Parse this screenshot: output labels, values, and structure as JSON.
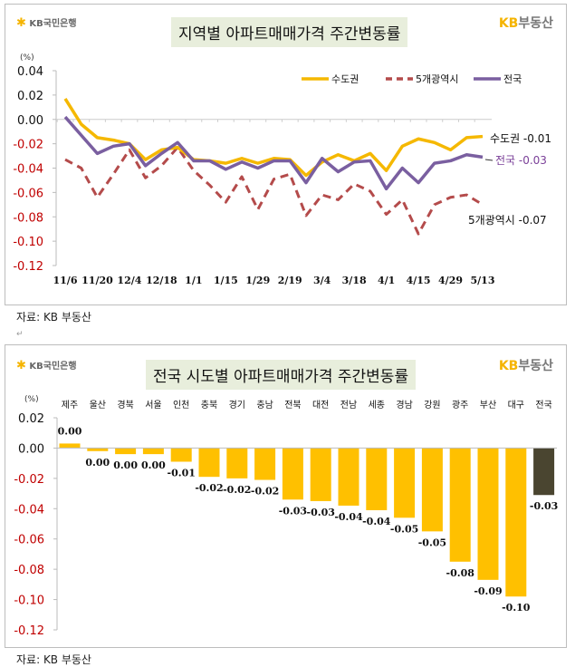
{
  "chart_data": [
    {
      "type": "line",
      "title": "지역별 아파트매매가격 주간변동률",
      "unit": "(%)",
      "ylim": [
        -0.12,
        0.04
      ],
      "yticks": [
        "0.04",
        "0.02",
        "0.00",
        "-0.02",
        "-0.04",
        "-0.06",
        "-0.08",
        "-0.10",
        "-0.12"
      ],
      "x": [
        "11/6",
        "11/13",
        "11/20",
        "11/27",
        "12/4",
        "12/11",
        "12/18",
        "12/25",
        "1/1",
        "1/8",
        "1/15",
        "1/22",
        "1/29",
        "2/5",
        "2/19",
        "2/26",
        "3/4",
        "3/11",
        "3/18",
        "3/25",
        "4/1",
        "4/8",
        "4/15",
        "4/22",
        "4/29",
        "5/6",
        "5/13"
      ],
      "xtick_labels": [
        "11/6",
        "11/20",
        "12/4",
        "12/18",
        "1/1",
        "1/15",
        "1/29",
        "2/19",
        "3/4",
        "3/18",
        "4/1",
        "4/15",
        "4/29",
        "5/13"
      ],
      "legend_position": "top-right",
      "series": [
        {
          "name": "수도권",
          "color": "#f5b800",
          "style": "solid",
          "end_label": "수도권 -0.01",
          "values": [
            0.017,
            -0.004,
            -0.015,
            -0.017,
            -0.02,
            -0.033,
            -0.025,
            -0.023,
            -0.033,
            -0.034,
            -0.036,
            -0.032,
            -0.036,
            -0.032,
            -0.033,
            -0.046,
            -0.035,
            -0.029,
            -0.034,
            -0.028,
            -0.042,
            -0.022,
            -0.016,
            -0.019,
            -0.025,
            -0.015,
            -0.014
          ]
        },
        {
          "name": "5개광역시",
          "color": "#b44b4b",
          "style": "dashed",
          "end_label": "5개광역시 -0.07",
          "values": [
            -0.033,
            -0.04,
            -0.064,
            -0.045,
            -0.025,
            -0.048,
            -0.038,
            -0.023,
            -0.042,
            -0.054,
            -0.068,
            -0.047,
            -0.074,
            -0.049,
            -0.045,
            -0.079,
            -0.062,
            -0.066,
            -0.053,
            -0.059,
            -0.078,
            -0.066,
            -0.094,
            -0.07,
            -0.064,
            -0.062,
            -0.07
          ]
        },
        {
          "name": "전국",
          "color": "#7a5fa0",
          "style": "solid",
          "end_label": "전국 -0.03",
          "values": [
            0.002,
            -0.013,
            -0.028,
            -0.022,
            -0.02,
            -0.038,
            -0.028,
            -0.019,
            -0.034,
            -0.034,
            -0.041,
            -0.035,
            -0.04,
            -0.034,
            -0.034,
            -0.052,
            -0.032,
            -0.043,
            -0.035,
            -0.034,
            -0.057,
            -0.04,
            -0.052,
            -0.036,
            -0.034,
            -0.029,
            -0.031
          ]
        }
      ]
    },
    {
      "type": "bar",
      "title": "전국 시도별 아파트매매가격 주간변동률",
      "unit": "(%)",
      "ylim": [
        -0.12,
        0.02
      ],
      "yticks": [
        "0.02",
        "0.00",
        "-0.02",
        "-0.04",
        "-0.06",
        "-0.08",
        "-0.10",
        "-0.12"
      ],
      "categories": [
        "제주",
        "울산",
        "경북",
        "서울",
        "인천",
        "충북",
        "경기",
        "충남",
        "전북",
        "대전",
        "전남",
        "세종",
        "경남",
        "강원",
        "광주",
        "부산",
        "대구",
        "전국"
      ],
      "values": [
        0.003,
        -0.002,
        -0.004,
        -0.004,
        -0.009,
        -0.019,
        -0.02,
        -0.021,
        -0.034,
        -0.035,
        -0.038,
        -0.041,
        -0.046,
        -0.055,
        -0.075,
        -0.087,
        -0.098,
        -0.031
      ],
      "data_labels": [
        "0.00",
        "0.00",
        "0.00",
        "0.00",
        "-0.01",
        "-0.02",
        "-0.02",
        "-0.02",
        "-0.03",
        "-0.03",
        "-0.04",
        "-0.04",
        "-0.05",
        "-0.05",
        "-0.08",
        "-0.09",
        "-0.10",
        "-0.03"
      ],
      "bar_color": "#ffc000",
      "highlight_color": "#4a4530"
    }
  ],
  "logos": {
    "left": "KB국민은행",
    "right_kb": "KB",
    "right_text": "부동산"
  },
  "source": "자료: KB 부동산"
}
